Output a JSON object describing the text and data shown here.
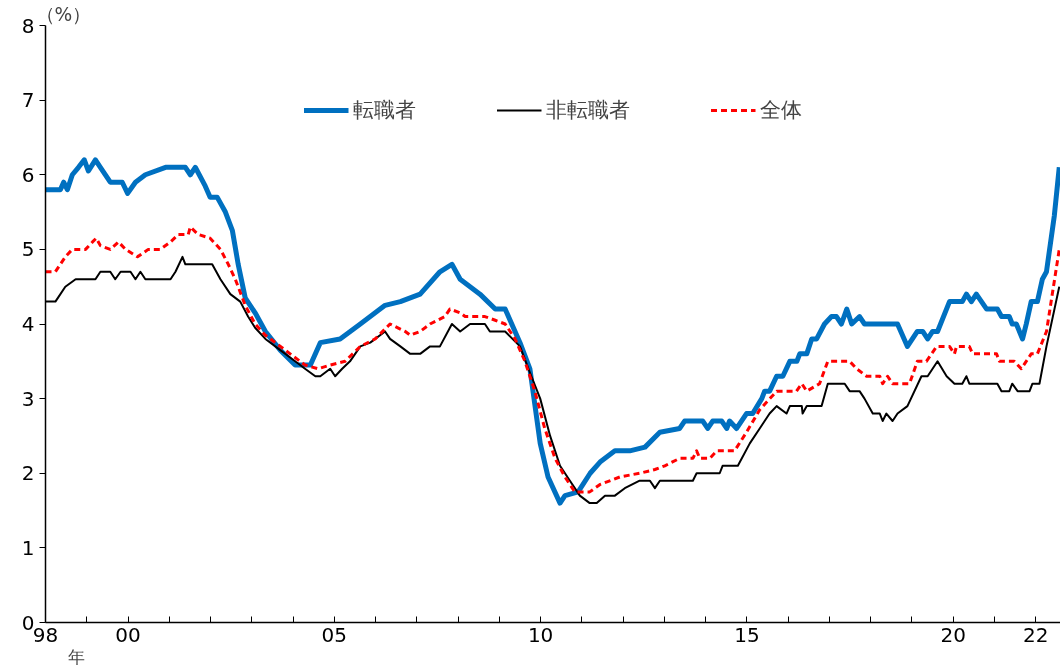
{
  "chart_data": {
    "type": "line",
    "ylabel": "（%）",
    "xlabel": "年",
    "xlim": [
      1998,
      2022.6
    ],
    "ylim": [
      0,
      8
    ],
    "xticks": [
      {
        "value": 1998,
        "label": "98"
      },
      {
        "value": 1999,
        "label": null
      },
      {
        "value": 2000,
        "label": "00"
      },
      {
        "value": 2001,
        "label": null
      },
      {
        "value": 2002,
        "label": null
      },
      {
        "value": 2003,
        "label": null
      },
      {
        "value": 2004,
        "label": null
      },
      {
        "value": 2005,
        "label": "05"
      },
      {
        "value": 2006,
        "label": null
      },
      {
        "value": 2007,
        "label": null
      },
      {
        "value": 2008,
        "label": null
      },
      {
        "value": 2009,
        "label": null
      },
      {
        "value": 2010,
        "label": "10"
      },
      {
        "value": 2011,
        "label": null
      },
      {
        "value": 2012,
        "label": null
      },
      {
        "value": 2013,
        "label": null
      },
      {
        "value": 2014,
        "label": null
      },
      {
        "value": 2015,
        "label": "15"
      },
      {
        "value": 2016,
        "label": null
      },
      {
        "value": 2017,
        "label": null
      },
      {
        "value": 2018,
        "label": null
      },
      {
        "value": 2019,
        "label": null
      },
      {
        "value": 2020,
        "label": "20"
      },
      {
        "value": 2021,
        "label": null
      },
      {
        "value": 2022,
        "label": "22"
      }
    ],
    "yticks": [
      0,
      1,
      2,
      3,
      4,
      5,
      6,
      7,
      8
    ],
    "grid": false,
    "legend": "top",
    "marker": "none",
    "series": [
      {
        "name": "転職者",
        "color": "#0070c0",
        "line_style": "solid",
        "x": [
          1998.0,
          1998.36,
          1998.44,
          1998.53,
          1998.65,
          1998.8,
          1998.94,
          1999.04,
          1999.21,
          1999.33,
          1999.57,
          1999.86,
          1999.99,
          2000.18,
          2000.42,
          2000.91,
          2001.39,
          2001.51,
          2001.63,
          2001.87,
          2001.99,
          2002.16,
          2002.36,
          2002.53,
          2002.67,
          2002.84,
          2003.08,
          2003.33,
          2003.69,
          2004.05,
          2004.42,
          2004.66,
          2005.14,
          2005.63,
          2006.23,
          2006.6,
          2007.08,
          2007.56,
          2007.85,
          2008.05,
          2008.53,
          2008.9,
          2009.14,
          2009.5,
          2009.74,
          2009.99,
          2010.18,
          2010.47,
          2010.59,
          2010.91,
          2011.2,
          2011.44,
          2011.8,
          2012.16,
          2012.53,
          2012.89,
          2013.37,
          2013.49,
          2013.93,
          2014.05,
          2014.17,
          2014.39,
          2014.51,
          2014.58,
          2014.75,
          2014.99,
          2015.14,
          2015.36,
          2015.43,
          2015.55,
          2015.72,
          2015.87,
          2016.04,
          2016.21,
          2016.28,
          2016.45,
          2016.57,
          2016.69,
          2016.88,
          2017.05,
          2017.17,
          2017.29,
          2017.42,
          2017.54,
          2017.73,
          2017.85,
          2018.65,
          2018.89,
          2019.01,
          2019.13,
          2019.26,
          2019.38,
          2019.5,
          2019.62,
          2019.91,
          2020.22,
          2020.32,
          2020.44,
          2020.56,
          2020.81,
          2021.07,
          2021.17,
          2021.36,
          2021.43,
          2021.53,
          2021.68,
          2021.77,
          2021.89,
          2022.04,
          2022.16,
          2022.26,
          2022.45,
          2022.57
        ],
        "values": [
          5.8,
          5.8,
          5.9,
          5.8,
          6.0,
          6.1,
          6.2,
          6.05,
          6.2,
          6.1,
          5.9,
          5.9,
          5.75,
          5.9,
          6.0,
          6.1,
          6.1,
          6.0,
          6.1,
          5.85,
          5.7,
          5.7,
          5.5,
          5.25,
          4.8,
          4.35,
          4.15,
          3.9,
          3.65,
          3.45,
          3.45,
          3.75,
          3.8,
          4.0,
          4.25,
          4.3,
          4.4,
          4.7,
          4.8,
          4.6,
          4.4,
          4.2,
          4.2,
          3.75,
          3.4,
          2.4,
          1.95,
          1.6,
          1.7,
          1.75,
          2.0,
          2.15,
          2.3,
          2.3,
          2.35,
          2.55,
          2.6,
          2.7,
          2.7,
          2.6,
          2.7,
          2.7,
          2.6,
          2.7,
          2.6,
          2.8,
          2.8,
          3.0,
          3.1,
          3.1,
          3.3,
          3.3,
          3.5,
          3.5,
          3.6,
          3.6,
          3.8,
          3.8,
          4.0,
          4.1,
          4.1,
          4.0,
          4.2,
          4.0,
          4.1,
          4.0,
          4.0,
          3.7,
          3.8,
          3.9,
          3.9,
          3.8,
          3.9,
          3.9,
          4.3,
          4.3,
          4.4,
          4.3,
          4.4,
          4.2,
          4.2,
          4.1,
          4.1,
          4.0,
          4.0,
          3.8,
          4.0,
          4.3,
          4.3,
          4.6,
          4.7,
          5.45,
          6.1
        ]
      },
      {
        "name": "非転職者",
        "color": "#000000",
        "line_style": "solid",
        "x": [
          1998.0,
          1998.24,
          1998.48,
          1998.73,
          1999.21,
          1999.33,
          1999.57,
          1999.69,
          1999.82,
          2000.06,
          2000.18,
          2000.3,
          2000.42,
          2001.03,
          2001.15,
          2001.32,
          2001.39,
          2002.04,
          2002.24,
          2002.48,
          2002.72,
          2002.91,
          2003.08,
          2003.33,
          2003.69,
          2004.05,
          2004.29,
          2004.54,
          2004.66,
          2004.9,
          2005.02,
          2005.19,
          2005.38,
          2005.63,
          2005.87,
          2006.23,
          2006.35,
          2006.6,
          2006.84,
          2007.08,
          2007.32,
          2007.56,
          2007.85,
          2008.05,
          2008.29,
          2008.65,
          2008.77,
          2009.14,
          2009.5,
          2009.74,
          2009.99,
          2010.23,
          2010.47,
          2010.71,
          2010.95,
          2011.19,
          2011.36,
          2011.56,
          2011.8,
          2012.04,
          2012.4,
          2012.65,
          2012.77,
          2012.89,
          2013.37,
          2013.69,
          2013.78,
          2014.34,
          2014.41,
          2014.78,
          2015.07,
          2015.31,
          2015.55,
          2015.72,
          2015.96,
          2016.04,
          2016.33,
          2016.35,
          2016.45,
          2016.81,
          2016.96,
          2017.37,
          2017.49,
          2017.73,
          2017.85,
          2018.05,
          2018.22,
          2018.29,
          2018.38,
          2018.53,
          2018.65,
          2018.89,
          2019.23,
          2019.38,
          2019.62,
          2019.84,
          2020.03,
          2020.22,
          2020.32,
          2020.39,
          2021.07,
          2021.17,
          2021.36,
          2021.43,
          2021.56,
          2021.85,
          2021.92,
          2022.09,
          2022.26,
          2022.57
        ],
        "values": [
          4.3,
          4.3,
          4.5,
          4.6,
          4.6,
          4.7,
          4.7,
          4.6,
          4.7,
          4.7,
          4.6,
          4.7,
          4.6,
          4.6,
          4.7,
          4.9,
          4.8,
          4.8,
          4.6,
          4.4,
          4.3,
          4.1,
          3.95,
          3.8,
          3.65,
          3.5,
          3.4,
          3.3,
          3.3,
          3.4,
          3.3,
          3.4,
          3.5,
          3.7,
          3.75,
          3.9,
          3.8,
          3.7,
          3.6,
          3.6,
          3.7,
          3.7,
          4.0,
          3.9,
          4.0,
          4.0,
          3.9,
          3.9,
          3.7,
          3.35,
          3.0,
          2.5,
          2.1,
          1.9,
          1.7,
          1.6,
          1.6,
          1.7,
          1.7,
          1.8,
          1.9,
          1.9,
          1.8,
          1.9,
          1.9,
          1.9,
          2.0,
          2.0,
          2.1,
          2.1,
          2.4,
          2.6,
          2.8,
          2.9,
          2.8,
          2.9,
          2.9,
          2.8,
          2.9,
          2.9,
          3.2,
          3.2,
          3.1,
          3.1,
          3.0,
          2.8,
          2.8,
          2.7,
          2.8,
          2.7,
          2.8,
          2.9,
          3.3,
          3.3,
          3.5,
          3.3,
          3.2,
          3.2,
          3.3,
          3.2,
          3.2,
          3.1,
          3.1,
          3.2,
          3.1,
          3.1,
          3.2,
          3.2,
          3.7,
          4.5
        ]
      },
      {
        "name": "全体",
        "color": "#ff0000",
        "line_style": "dashed",
        "x": [
          1998.0,
          1998.24,
          1998.48,
          1998.65,
          1998.97,
          1999.14,
          1999.23,
          1999.33,
          1999.57,
          1999.77,
          1999.94,
          2000.23,
          2000.49,
          2000.78,
          2001.03,
          2001.22,
          2001.46,
          2001.51,
          2001.7,
          2001.99,
          2002.24,
          2002.43,
          2002.6,
          2002.84,
          2003.08,
          2003.33,
          2003.57,
          2003.93,
          2004.29,
          2004.61,
          2004.9,
          2005.26,
          2005.63,
          2005.99,
          2006.35,
          2006.72,
          2006.84,
          2007.08,
          2007.32,
          2007.68,
          2007.8,
          2008.05,
          2008.17,
          2008.65,
          2008.9,
          2009.14,
          2009.38,
          2009.62,
          2009.86,
          2010.1,
          2010.35,
          2010.59,
          2010.83,
          2011.19,
          2011.44,
          2011.92,
          2012.4,
          2012.77,
          2013.01,
          2013.37,
          2013.69,
          2013.78,
          2013.86,
          2014.1,
          2014.27,
          2014.7,
          2014.99,
          2015.31,
          2015.72,
          2016.2,
          2016.33,
          2016.45,
          2016.76,
          2016.96,
          2017.49,
          2017.66,
          2017.9,
          2018.22,
          2018.29,
          2018.41,
          2018.53,
          2018.94,
          2019.13,
          2019.35,
          2019.6,
          2019.91,
          2020.03,
          2020.08,
          2020.39,
          2020.47,
          2021.05,
          2021.12,
          2021.48,
          2021.65,
          2021.89,
          2022.04,
          2022.26,
          2022.57
        ],
        "values": [
          4.7,
          4.7,
          4.9,
          5.0,
          5.0,
          5.1,
          5.15,
          5.05,
          5.0,
          5.1,
          5.0,
          4.9,
          5.0,
          5.0,
          5.1,
          5.2,
          5.2,
          5.3,
          5.2,
          5.15,
          5.0,
          4.8,
          4.6,
          4.25,
          4.0,
          3.85,
          3.75,
          3.6,
          3.45,
          3.4,
          3.45,
          3.5,
          3.7,
          3.8,
          4.0,
          3.9,
          3.85,
          3.9,
          4.0,
          4.1,
          4.2,
          4.15,
          4.1,
          4.1,
          4.05,
          4.0,
          3.8,
          3.5,
          3.1,
          2.6,
          2.2,
          1.95,
          1.75,
          1.75,
          1.85,
          1.95,
          2.0,
          2.05,
          2.1,
          2.2,
          2.2,
          2.3,
          2.2,
          2.2,
          2.3,
          2.3,
          2.55,
          2.85,
          3.1,
          3.1,
          3.2,
          3.1,
          3.2,
          3.5,
          3.5,
          3.4,
          3.3,
          3.3,
          3.2,
          3.3,
          3.2,
          3.2,
          3.5,
          3.5,
          3.7,
          3.7,
          3.6,
          3.7,
          3.7,
          3.6,
          3.6,
          3.5,
          3.5,
          3.4,
          3.6,
          3.6,
          3.9,
          5.0
        ]
      }
    ]
  }
}
